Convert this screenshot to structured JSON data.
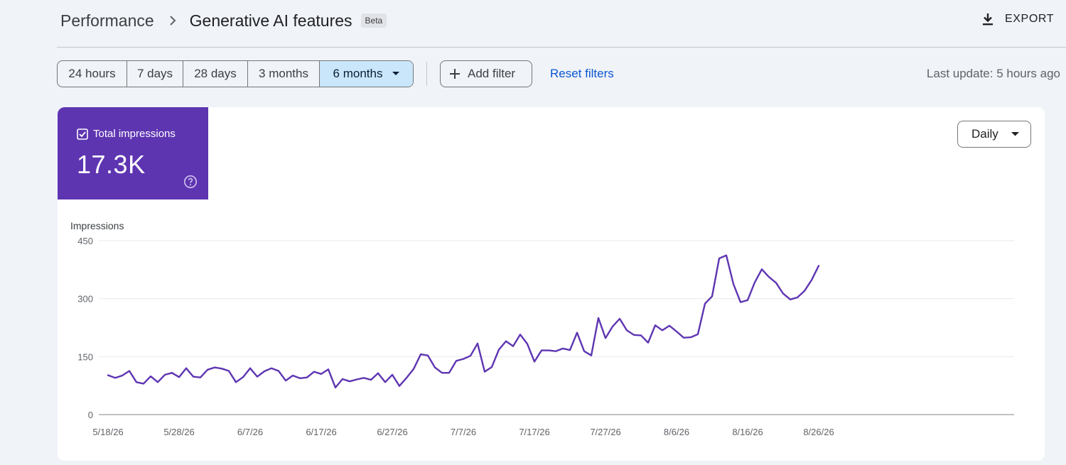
{
  "header": {
    "breadcrumb_root": "Performance",
    "title": "Generative AI features",
    "badge": "Beta",
    "export_label": "EXPORT"
  },
  "toolbar": {
    "ranges": [
      {
        "label": "24 hours",
        "selected": false
      },
      {
        "label": "7 days",
        "selected": false
      },
      {
        "label": "28 days",
        "selected": false
      },
      {
        "label": "3 months",
        "selected": false
      },
      {
        "label": "6 months",
        "selected": true
      }
    ],
    "add_filter_label": "Add filter",
    "reset_filters_label": "Reset filters",
    "last_update": "Last update: 5 hours ago"
  },
  "metric": {
    "label": "Total impressions",
    "value": "17.3K",
    "checked": true,
    "color": "#5e35b1"
  },
  "granularity": {
    "selected": "Daily"
  },
  "chart_data": {
    "type": "line",
    "ylabel": "Impressions",
    "ylim": [
      0,
      450
    ],
    "yticks": [
      0,
      150,
      300,
      450
    ],
    "grid": true,
    "line_color": "#5e35b1",
    "x_tick_labels": [
      "5/18/26",
      "5/28/26",
      "6/7/26",
      "6/17/26",
      "6/27/26",
      "7/7/26",
      "7/17/26",
      "7/27/26",
      "8/6/26",
      "8/16/26",
      "8/26/26"
    ],
    "x_start": "5/18/26",
    "x_end": "8/26/26",
    "series": [
      {
        "values": [
          102,
          95,
          101,
          113,
          84,
          80,
          99,
          84,
          103,
          108,
          97,
          120,
          98,
          96,
          116,
          122,
          119,
          113,
          84,
          97,
          120,
          98,
          112,
          120,
          113,
          88,
          101,
          94,
          96,
          111,
          105,
          117,
          70,
          92,
          86,
          91,
          95,
          90,
          107,
          84,
          103,
          74,
          95,
          118,
          156,
          153,
          122,
          108,
          108,
          139,
          144,
          152,
          184,
          111,
          123,
          168,
          190,
          177,
          207,
          183,
          137,
          166,
          166,
          164,
          171,
          167,
          212,
          164,
          153,
          250,
          198,
          228,
          248,
          218,
          206,
          205,
          186,
          231,
          218,
          230,
          215,
          199,
          200,
          208,
          287,
          306,
          404,
          412,
          338,
          291,
          296,
          342,
          376,
          356,
          341,
          313,
          298,
          303,
          320,
          348,
          385
        ]
      }
    ]
  }
}
